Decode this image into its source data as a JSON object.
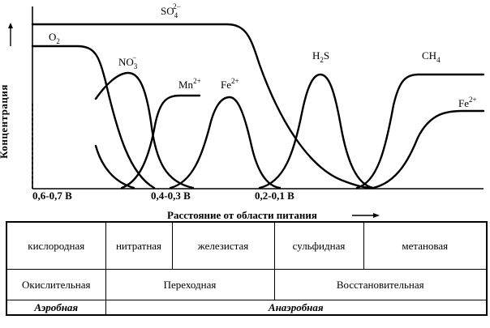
{
  "diagram": {
    "y_axis_label": "Концентрация",
    "x_axis_label": "Расстояние от области питания",
    "x_ticks": [
      "0,6-0,7 B",
      "0,4-0,3 B",
      "0,2-0,1 B"
    ],
    "species": [
      {
        "key": "so4",
        "base": "SO",
        "sub": "4",
        "sup": "2−"
      },
      {
        "key": "o2",
        "base": "O",
        "sub": "2",
        "sup": ""
      },
      {
        "key": "no3",
        "base": "NO",
        "sub": "3",
        "sup": "−"
      },
      {
        "key": "mn",
        "base": "Mn",
        "sub": "",
        "sup": "2+"
      },
      {
        "key": "fe_mid",
        "base": "Fe",
        "sub": "",
        "sup": "2+"
      },
      {
        "key": "h2s",
        "base": "H",
        "sub": "2",
        "sup": "",
        "tail": "S"
      },
      {
        "key": "ch4",
        "base": "CH",
        "sub": "4",
        "sup": ""
      },
      {
        "key": "fe_right",
        "base": "Fe",
        "sub": "",
        "sup": "2+"
      }
    ]
  },
  "table": {
    "zones": [
      "кислородная",
      "нитратная",
      "железистая",
      "сульфидная",
      "метановая"
    ],
    "redox": [
      "Окислительная",
      "Переходная",
      "Восстановительная"
    ],
    "regime": [
      "Аэробная",
      "Анаэробная"
    ]
  }
}
